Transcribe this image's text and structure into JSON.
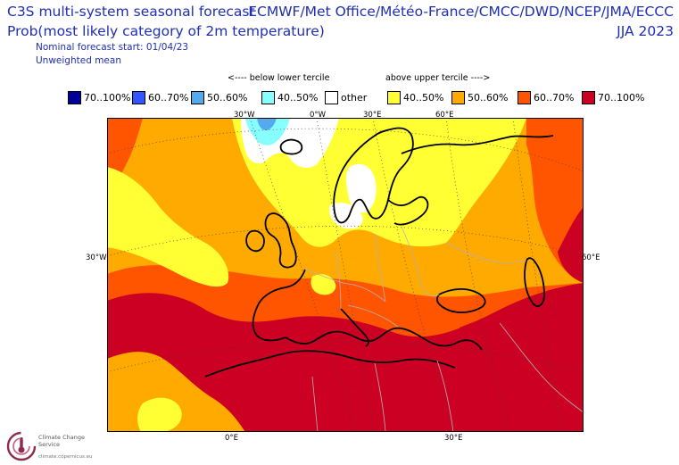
{
  "header": {
    "title_line1": "C3S multi-system seasonal forecast",
    "title_line2": "Prob(most likely category of 2m temperature)",
    "forecast_start": "Nominal forecast start: 01/04/23",
    "weighting": "Unweighted mean",
    "systems": "ECMWF/Met Office/Météo-France/CMCC/DWD/NCEP/JMA/ECCC",
    "season": "JJA 2023"
  },
  "legend": {
    "below_label": "<---- below lower tercile",
    "above_label": "above upper tercile ---->",
    "items": [
      {
        "label": "70..100%",
        "color": "#000099"
      },
      {
        "label": "60..70%",
        "color": "#3355ff"
      },
      {
        "label": "50..60%",
        "color": "#55aaee"
      },
      {
        "label": "40..50%",
        "color": "#88ffff"
      },
      {
        "label": "other",
        "color": "#ffffff"
      },
      {
        "label": "40..50%",
        "color": "#ffff33"
      },
      {
        "label": "50..60%",
        "color": "#ffaa00"
      },
      {
        "label": "60..70%",
        "color": "#ff5500"
      },
      {
        "label": "70..100%",
        "color": "#cc0022"
      }
    ]
  },
  "map": {
    "labels": {
      "top_30w": "30°W",
      "top_0w": "0°W",
      "top_30e": "30°E",
      "top_60e": "60°E",
      "left_30w": "30°W",
      "right_60e": "60°E",
      "bottom_0e": "0°E",
      "bottom_30e": "30°E"
    },
    "colors": {
      "coast": "#000000",
      "border": "#b3b3b3",
      "grid": "#444444"
    }
  },
  "logo": {
    "name": "Climate Change Service",
    "url": "climate.copernicus.eu"
  }
}
